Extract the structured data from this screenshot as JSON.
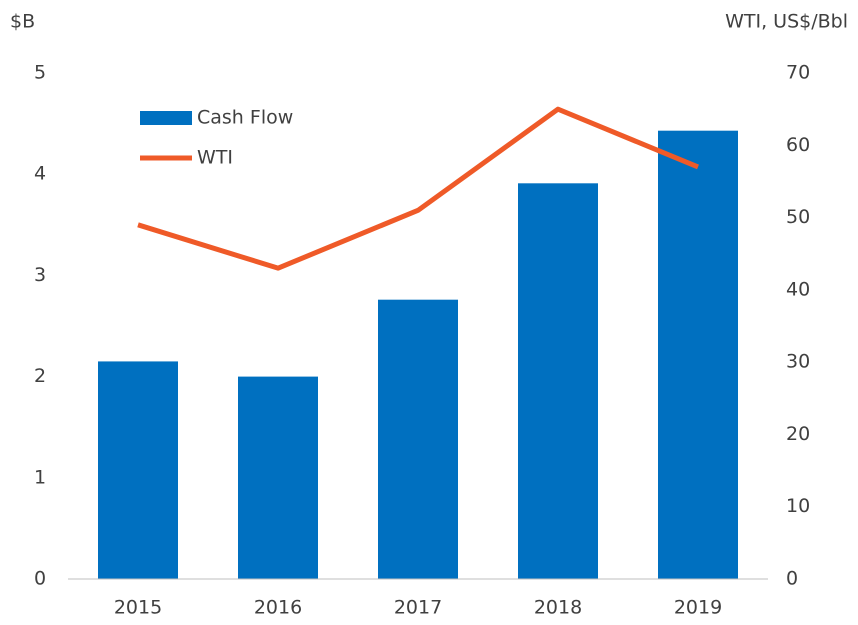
{
  "chart_data": {
    "type": "bar_line",
    "ylabel": "$B",
    "y2label": "WTI, US$/Bbl",
    "categories": [
      "2015",
      "2016",
      "2017",
      "2018",
      "2019"
    ],
    "series": [
      {
        "name": "Cash Flow",
        "type": "bar",
        "color": "#0070c0",
        "values": [
          2.15,
          2.0,
          2.76,
          3.91,
          4.43
        ]
      },
      {
        "name": "WTI",
        "type": "line",
        "axis": "y2",
        "color": "#ef5a28",
        "values": [
          49,
          43,
          51,
          65,
          57
        ]
      }
    ],
    "ylim": [
      0,
      5
    ],
    "yticks": [
      0,
      1,
      2,
      3,
      4,
      5
    ],
    "y2lim": [
      0,
      70
    ],
    "y2ticks": [
      0,
      10,
      20,
      30,
      40,
      50,
      60,
      70
    ],
    "grid": false,
    "legend": "upper left"
  }
}
